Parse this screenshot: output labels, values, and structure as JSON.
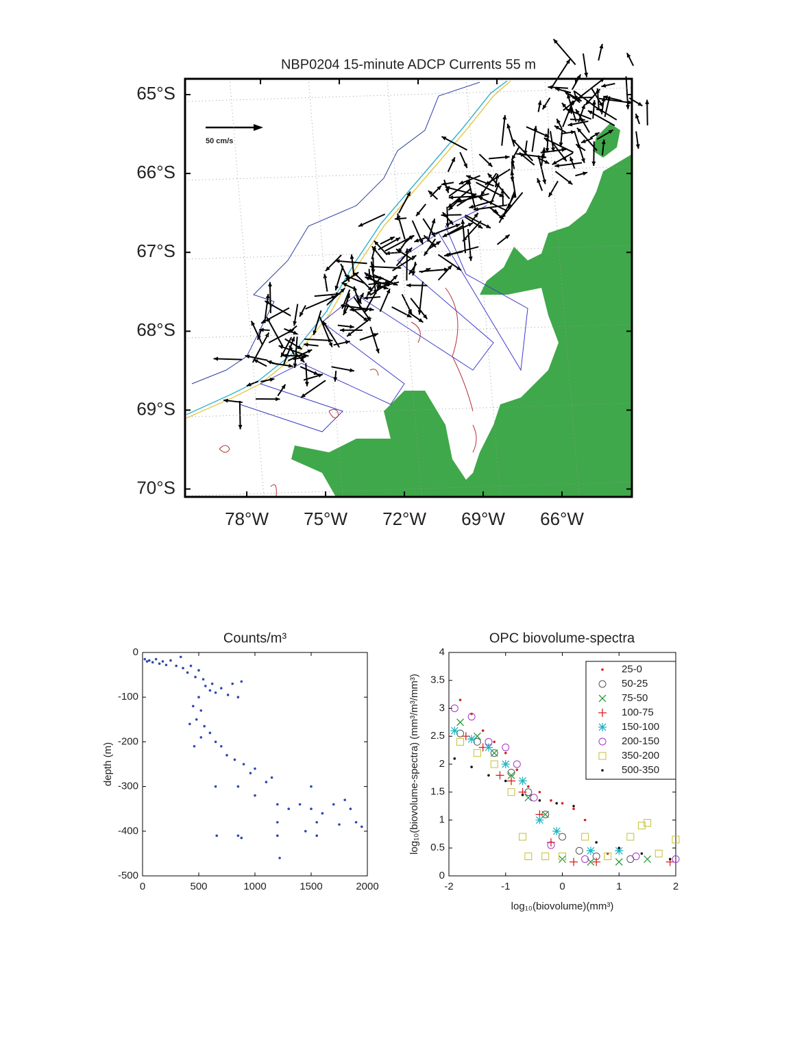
{
  "chart_data": [
    {
      "type": "map",
      "title": "NBP0204 15-minute ADCP Currents 55 m",
      "annotation": "50 cm/s",
      "xlim": [
        -80.35,
        -63.34
      ],
      "ylim": [
        -70.1,
        -64.8
      ],
      "xticks": [
        {
          "value": -78,
          "label": "78°W"
        },
        {
          "value": -75,
          "label": "75°W"
        },
        {
          "value": -72,
          "label": "72°W"
        },
        {
          "value": -69,
          "label": "69°W"
        },
        {
          "value": -66,
          "label": "66°W"
        }
      ],
      "yticks": [
        {
          "value": -65,
          "label": "65°S"
        },
        {
          "value": -66,
          "label": "66°S"
        },
        {
          "value": -67,
          "label": "67°S"
        },
        {
          "value": -68,
          "label": "68°S"
        },
        {
          "value": -69,
          "label": "69°S"
        },
        {
          "value": -70,
          "label": "70°S"
        }
      ],
      "grid": true,
      "land_color": "#3fa84a"
    },
    {
      "type": "scatter",
      "title": "Counts/m³",
      "ylabel": "depth (m)",
      "xlim": [
        0,
        2000
      ],
      "ylim": [
        -500,
        0
      ],
      "xticks": [
        0,
        500,
        1000,
        1500,
        2000
      ],
      "yticks": [
        0,
        -100,
        -200,
        -300,
        -400,
        -500
      ],
      "series": [
        {
          "color": "#2f46b0",
          "marker": "dot",
          "x": [
            20,
            40,
            60,
            90,
            120,
            150,
            180,
            210,
            250,
            300,
            340,
            360,
            400,
            430,
            470,
            500,
            540,
            560,
            600,
            620,
            650,
            700,
            760,
            800,
            850,
            880,
            500,
            450,
            520,
            480,
            420,
            550,
            600,
            520,
            650,
            700,
            460,
            750,
            820,
            900,
            960,
            1000,
            1100,
            1150,
            850,
            650,
            1000,
            1200,
            1300,
            1400,
            1500,
            1600,
            1700,
            1800,
            1850,
            1900,
            1750,
            1550,
            1450,
            1200,
            1550,
            1950,
            850,
            880,
            660,
            1220,
            1500,
            1200
          ],
          "values": [
            -15,
            -20,
            -18,
            -22,
            -15,
            -25,
            -20,
            -28,
            -18,
            -30,
            -10,
            -35,
            -45,
            -30,
            -55,
            -40,
            -60,
            -75,
            -85,
            -70,
            -90,
            -80,
            -95,
            -70,
            -100,
            -65,
            -100,
            -120,
            -130,
            -150,
            -160,
            -165,
            -180,
            -190,
            -200,
            -210,
            -210,
            -230,
            -240,
            -250,
            -270,
            -260,
            -290,
            -280,
            -300,
            -300,
            -320,
            -340,
            -350,
            -340,
            -350,
            -360,
            -340,
            -330,
            -350,
            -380,
            -385,
            -380,
            -400,
            -410,
            -410,
            -390,
            -410,
            -415,
            -410,
            -460,
            -300,
            -380
          ]
        }
      ]
    },
    {
      "type": "scatter",
      "title": "OPC biovolume-spectra",
      "xlabel": "log₁₀(biovolume)(mm³)",
      "ylabel": "log₁₀(biovolume-spectra) (mm³/m³/mm³)",
      "xlim": [
        -2,
        2
      ],
      "ylim": [
        0,
        4
      ],
      "xticks": [
        -2,
        -1,
        0,
        1,
        2
      ],
      "yticks": [
        0,
        0.5,
        1,
        1.5,
        2,
        2.5,
        3,
        3.5,
        4
      ],
      "legend": "upper right",
      "series": [
        {
          "name": "25-0",
          "color": "#d62020",
          "marker": "dot",
          "x": [
            -1.8,
            -1.6,
            -1.4,
            -1.2,
            -1,
            -0.8,
            -0.6,
            -0.4,
            -0.2,
            0,
            0.2,
            0.4,
            0.8
          ],
          "values": [
            3.15,
            2.9,
            2.6,
            2.4,
            2.2,
            1.9,
            1.6,
            1.5,
            1.35,
            1.3,
            1.2,
            1,
            0.4
          ]
        },
        {
          "name": "50-25",
          "color": "#555555",
          "marker": "circle",
          "x": [
            -1.8,
            -1.5,
            -1.2,
            -0.9,
            -0.6,
            -0.3,
            0,
            0.3,
            0.6,
            1.2
          ],
          "values": [
            2.55,
            2.4,
            2.2,
            1.85,
            1.5,
            1.1,
            0.7,
            0.45,
            0.35,
            0.3
          ]
        },
        {
          "name": "75-50",
          "color": "#2e9a3e",
          "marker": "x",
          "x": [
            -1.8,
            -1.5,
            -1.2,
            -0.9,
            -0.6,
            -0.3,
            0,
            0.5,
            1,
            1.5
          ],
          "values": [
            2.75,
            2.5,
            2.2,
            1.8,
            1.4,
            1.1,
            0.3,
            0.25,
            0.25,
            0.3
          ]
        },
        {
          "name": "100-75",
          "color": "#d62020",
          "marker": "plus",
          "x": [
            -1.7,
            -1.4,
            -1.1,
            -0.9,
            -0.7,
            -0.4,
            -0.2,
            0.2,
            0.6,
            1.9
          ],
          "values": [
            2.5,
            2.3,
            1.8,
            1.7,
            1.5,
            1.1,
            0.6,
            0.25,
            0.25,
            0.25
          ]
        },
        {
          "name": "150-100",
          "color": "#1fb5c4",
          "marker": "star",
          "x": [
            -1.9,
            -1.6,
            -1.3,
            -1,
            -0.7,
            -0.4,
            -0.1,
            0.5,
            1
          ],
          "values": [
            2.6,
            2.45,
            2.3,
            2,
            1.7,
            1,
            0.8,
            0.45,
            0.45
          ]
        },
        {
          "name": "200-150",
          "color": "#a334c4",
          "marker": "circle",
          "x": [
            -1.9,
            -1.6,
            -1.3,
            -1,
            -0.8,
            -0.5,
            -0.2,
            0.4,
            1.3,
            2
          ],
          "values": [
            3,
            2.85,
            2.4,
            2.3,
            2,
            1.4,
            0.55,
            0.3,
            0.35,
            0.3
          ]
        },
        {
          "name": "350-200",
          "color": "#c4c030",
          "marker": "square",
          "x": [
            -1.8,
            -1.5,
            -1.2,
            -0.9,
            -0.7,
            -0.6,
            -0.3,
            0,
            0.4,
            0.8,
            1.2,
            1.4,
            1.5,
            1.7,
            2
          ],
          "values": [
            2.4,
            2.2,
            2,
            1.5,
            0.7,
            0.35,
            0.35,
            0.35,
            0.7,
            0.35,
            0.7,
            0.9,
            0.95,
            0.4,
            0.65
          ]
        },
        {
          "name": "500-350",
          "color": "#111111",
          "marker": "dot",
          "x": [
            -1.9,
            -1.6,
            -1.3,
            -1,
            -0.7,
            -0.4,
            -0.1,
            0.2,
            0.6,
            1,
            1.4,
            1.9
          ],
          "values": [
            2.1,
            1.95,
            1.8,
            1.7,
            1.45,
            1.35,
            1.3,
            1.25,
            0.6,
            0.5,
            0.4,
            0.3
          ]
        }
      ]
    }
  ]
}
